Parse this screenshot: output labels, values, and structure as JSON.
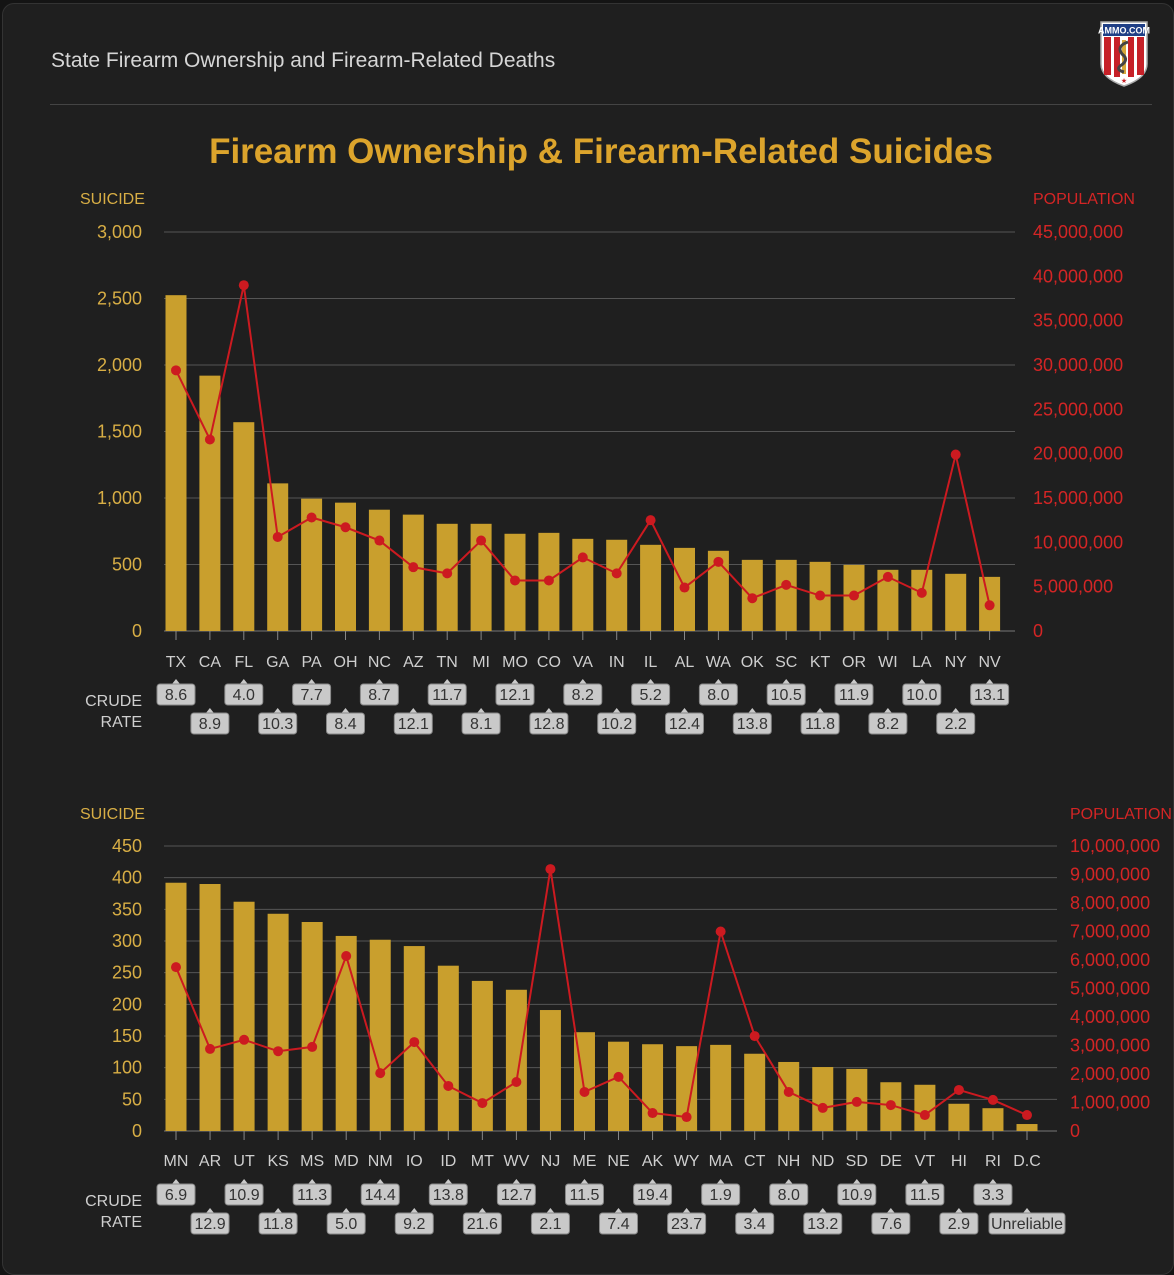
{
  "header": {
    "title": "State Firearm Ownership and Firearm-Related Deaths",
    "logo_text": "AMMO.COM"
  },
  "colors": {
    "bar": "#c99f2d",
    "line": "#cc1a20",
    "title": "#dca42c",
    "left_axis": "#d8ae45",
    "right_axis": "#d42525",
    "rate_box": "#c9c9c9"
  },
  "chart_title": "Firearm Ownership & Firearm-Related Suicides",
  "chart_data": [
    {
      "type": "bar+line",
      "left_axis_label": "SUICIDE",
      "right_axis_label": "POPULATION",
      "rate_label": [
        "CRUDE",
        "RATE"
      ],
      "ylim": [
        0,
        3000
      ],
      "y2lim": [
        0,
        45000000
      ],
      "yticks": [
        "0",
        "500",
        "1,000",
        "1,500",
        "2,000",
        "2,500",
        "3,000"
      ],
      "y2ticks": [
        "0",
        "5,000,000",
        "10,000,000",
        "15,000,000",
        "20,000,000",
        "25,000,000",
        "30,000,000",
        "35,000,000",
        "40,000,000",
        "45,000,000"
      ],
      "grid": true,
      "categories": [
        "TX",
        "CA",
        "FL",
        "GA",
        "PA",
        "OH",
        "NC",
        "AZ",
        "TN",
        "MI",
        "MO",
        "CO",
        "VA",
        "IN",
        "IL",
        "AL",
        "WA",
        "OK",
        "SC",
        "KT",
        "OR",
        "WI",
        "LA",
        "NY",
        "NV"
      ],
      "suicides": [
        2525,
        1920,
        1570,
        1110,
        995,
        965,
        912,
        875,
        806,
        806,
        731,
        738,
        693,
        686,
        648,
        625,
        603,
        535,
        535,
        520,
        497,
        460,
        460,
        430,
        407
      ],
      "population": [
        29400000,
        21600000,
        39000000,
        10600000,
        12800000,
        11700000,
        10200000,
        7200000,
        6500000,
        10200000,
        5700000,
        5700000,
        8300000,
        6500000,
        12500000,
        4900000,
        7800000,
        3700000,
        5200000,
        4000000,
        4000000,
        6100000,
        4300000,
        19900000,
        2900000
      ],
      "crude_rate": [
        "8.6",
        "8.9",
        "4.0",
        "10.3",
        "7.7",
        "8.4",
        "8.7",
        "12.1",
        "11.7",
        "8.1",
        "12.1",
        "12.8",
        "8.2",
        "10.2",
        "5.2",
        "12.4",
        "8.0",
        "13.8",
        "10.5",
        "11.8",
        "11.9",
        "8.2",
        "10.0",
        "2.2",
        "13.1"
      ]
    },
    {
      "type": "bar+line",
      "left_axis_label": "SUICIDE",
      "right_axis_label": "POPULATION",
      "rate_label": [
        "CRUDE",
        "RATE"
      ],
      "ylim": [
        0,
        450
      ],
      "y2lim": [
        0,
        10000000
      ],
      "yticks": [
        "0",
        "50",
        "100",
        "150",
        "200",
        "250",
        "300",
        "350",
        "400",
        "450"
      ],
      "y2ticks": [
        "0",
        "1,000,000",
        "2,000,000",
        "3,000,000",
        "4,000,000",
        "5,000,000",
        "6,000,000",
        "7,000,000",
        "8,000,000",
        "9,000,000",
        "10,000,000"
      ],
      "grid": true,
      "categories": [
        "MN",
        "AR",
        "UT",
        "KS",
        "MS",
        "MD",
        "NM",
        "IO",
        "ID",
        "MT",
        "WV",
        "NJ",
        "ME",
        "NE",
        "AK",
        "WY",
        "MA",
        "CT",
        "NH",
        "ND",
        "SD",
        "DE",
        "VT",
        "HI",
        "RI",
        "D.C"
      ],
      "suicides": [
        392,
        390,
        362,
        343,
        330,
        308,
        302,
        292,
        261,
        237,
        223,
        191,
        156,
        141,
        137,
        134,
        136,
        122,
        109,
        101,
        98,
        77,
        73,
        43,
        36,
        11
      ],
      "population": [
        5750000,
        2880000,
        3200000,
        2800000,
        2950000,
        6140000,
        2030000,
        3120000,
        1580000,
        980000,
        1720000,
        9190000,
        1370000,
        1900000,
        630000,
        490000,
        7000000,
        3330000,
        1370000,
        810000,
        1020000,
        910000,
        560000,
        1440000,
        1090000,
        560000
      ],
      "crude_rate": [
        "6.9",
        "12.9",
        "10.9",
        "11.8",
        "11.3",
        "5.0",
        "14.4",
        "9.2",
        "13.8",
        "21.6",
        "12.7",
        "2.1",
        "11.5",
        "7.4",
        "19.4",
        "23.7",
        "1.9",
        "3.4",
        "8.0",
        "13.2",
        "10.9",
        "7.6",
        "11.5",
        "2.9",
        "3.3",
        "Unreliable"
      ]
    }
  ]
}
